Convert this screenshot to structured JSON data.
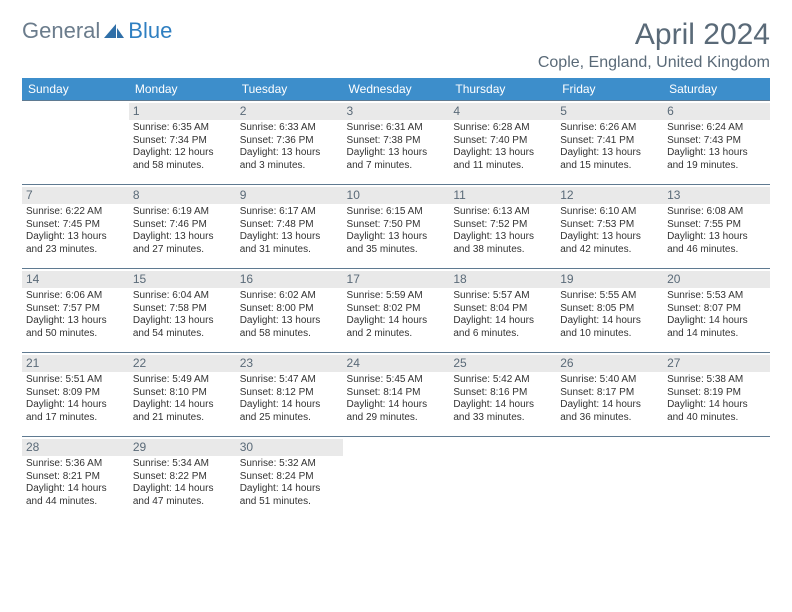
{
  "logo": {
    "general": "General",
    "blue": "Blue"
  },
  "title": "April 2024",
  "location": "Cople, England, United Kingdom",
  "colors": {
    "header_bg": "#3d8ecb",
    "header_text": "#ffffff",
    "daynum_bg": "#e9e9e9",
    "border": "#5f7a91",
    "text": "#333333",
    "title_text": "#5a6a78"
  },
  "daysOfWeek": [
    "Sunday",
    "Monday",
    "Tuesday",
    "Wednesday",
    "Thursday",
    "Friday",
    "Saturday"
  ],
  "weeks": [
    [
      null,
      {
        "n": "1",
        "sr": "Sunrise: 6:35 AM",
        "ss": "Sunset: 7:34 PM",
        "d1": "Daylight: 12 hours",
        "d2": "and 58 minutes."
      },
      {
        "n": "2",
        "sr": "Sunrise: 6:33 AM",
        "ss": "Sunset: 7:36 PM",
        "d1": "Daylight: 13 hours",
        "d2": "and 3 minutes."
      },
      {
        "n": "3",
        "sr": "Sunrise: 6:31 AM",
        "ss": "Sunset: 7:38 PM",
        "d1": "Daylight: 13 hours",
        "d2": "and 7 minutes."
      },
      {
        "n": "4",
        "sr": "Sunrise: 6:28 AM",
        "ss": "Sunset: 7:40 PM",
        "d1": "Daylight: 13 hours",
        "d2": "and 11 minutes."
      },
      {
        "n": "5",
        "sr": "Sunrise: 6:26 AM",
        "ss": "Sunset: 7:41 PM",
        "d1": "Daylight: 13 hours",
        "d2": "and 15 minutes."
      },
      {
        "n": "6",
        "sr": "Sunrise: 6:24 AM",
        "ss": "Sunset: 7:43 PM",
        "d1": "Daylight: 13 hours",
        "d2": "and 19 minutes."
      }
    ],
    [
      {
        "n": "7",
        "sr": "Sunrise: 6:22 AM",
        "ss": "Sunset: 7:45 PM",
        "d1": "Daylight: 13 hours",
        "d2": "and 23 minutes."
      },
      {
        "n": "8",
        "sr": "Sunrise: 6:19 AM",
        "ss": "Sunset: 7:46 PM",
        "d1": "Daylight: 13 hours",
        "d2": "and 27 minutes."
      },
      {
        "n": "9",
        "sr": "Sunrise: 6:17 AM",
        "ss": "Sunset: 7:48 PM",
        "d1": "Daylight: 13 hours",
        "d2": "and 31 minutes."
      },
      {
        "n": "10",
        "sr": "Sunrise: 6:15 AM",
        "ss": "Sunset: 7:50 PM",
        "d1": "Daylight: 13 hours",
        "d2": "and 35 minutes."
      },
      {
        "n": "11",
        "sr": "Sunrise: 6:13 AM",
        "ss": "Sunset: 7:52 PM",
        "d1": "Daylight: 13 hours",
        "d2": "and 38 minutes."
      },
      {
        "n": "12",
        "sr": "Sunrise: 6:10 AM",
        "ss": "Sunset: 7:53 PM",
        "d1": "Daylight: 13 hours",
        "d2": "and 42 minutes."
      },
      {
        "n": "13",
        "sr": "Sunrise: 6:08 AM",
        "ss": "Sunset: 7:55 PM",
        "d1": "Daylight: 13 hours",
        "d2": "and 46 minutes."
      }
    ],
    [
      {
        "n": "14",
        "sr": "Sunrise: 6:06 AM",
        "ss": "Sunset: 7:57 PM",
        "d1": "Daylight: 13 hours",
        "d2": "and 50 minutes."
      },
      {
        "n": "15",
        "sr": "Sunrise: 6:04 AM",
        "ss": "Sunset: 7:58 PM",
        "d1": "Daylight: 13 hours",
        "d2": "and 54 minutes."
      },
      {
        "n": "16",
        "sr": "Sunrise: 6:02 AM",
        "ss": "Sunset: 8:00 PM",
        "d1": "Daylight: 13 hours",
        "d2": "and 58 minutes."
      },
      {
        "n": "17",
        "sr": "Sunrise: 5:59 AM",
        "ss": "Sunset: 8:02 PM",
        "d1": "Daylight: 14 hours",
        "d2": "and 2 minutes."
      },
      {
        "n": "18",
        "sr": "Sunrise: 5:57 AM",
        "ss": "Sunset: 8:04 PM",
        "d1": "Daylight: 14 hours",
        "d2": "and 6 minutes."
      },
      {
        "n": "19",
        "sr": "Sunrise: 5:55 AM",
        "ss": "Sunset: 8:05 PM",
        "d1": "Daylight: 14 hours",
        "d2": "and 10 minutes."
      },
      {
        "n": "20",
        "sr": "Sunrise: 5:53 AM",
        "ss": "Sunset: 8:07 PM",
        "d1": "Daylight: 14 hours",
        "d2": "and 14 minutes."
      }
    ],
    [
      {
        "n": "21",
        "sr": "Sunrise: 5:51 AM",
        "ss": "Sunset: 8:09 PM",
        "d1": "Daylight: 14 hours",
        "d2": "and 17 minutes."
      },
      {
        "n": "22",
        "sr": "Sunrise: 5:49 AM",
        "ss": "Sunset: 8:10 PM",
        "d1": "Daylight: 14 hours",
        "d2": "and 21 minutes."
      },
      {
        "n": "23",
        "sr": "Sunrise: 5:47 AM",
        "ss": "Sunset: 8:12 PM",
        "d1": "Daylight: 14 hours",
        "d2": "and 25 minutes."
      },
      {
        "n": "24",
        "sr": "Sunrise: 5:45 AM",
        "ss": "Sunset: 8:14 PM",
        "d1": "Daylight: 14 hours",
        "d2": "and 29 minutes."
      },
      {
        "n": "25",
        "sr": "Sunrise: 5:42 AM",
        "ss": "Sunset: 8:16 PM",
        "d1": "Daylight: 14 hours",
        "d2": "and 33 minutes."
      },
      {
        "n": "26",
        "sr": "Sunrise: 5:40 AM",
        "ss": "Sunset: 8:17 PM",
        "d1": "Daylight: 14 hours",
        "d2": "and 36 minutes."
      },
      {
        "n": "27",
        "sr": "Sunrise: 5:38 AM",
        "ss": "Sunset: 8:19 PM",
        "d1": "Daylight: 14 hours",
        "d2": "and 40 minutes."
      }
    ],
    [
      {
        "n": "28",
        "sr": "Sunrise: 5:36 AM",
        "ss": "Sunset: 8:21 PM",
        "d1": "Daylight: 14 hours",
        "d2": "and 44 minutes."
      },
      {
        "n": "29",
        "sr": "Sunrise: 5:34 AM",
        "ss": "Sunset: 8:22 PM",
        "d1": "Daylight: 14 hours",
        "d2": "and 47 minutes."
      },
      {
        "n": "30",
        "sr": "Sunrise: 5:32 AM",
        "ss": "Sunset: 8:24 PM",
        "d1": "Daylight: 14 hours",
        "d2": "and 51 minutes."
      },
      null,
      null,
      null,
      null
    ]
  ]
}
